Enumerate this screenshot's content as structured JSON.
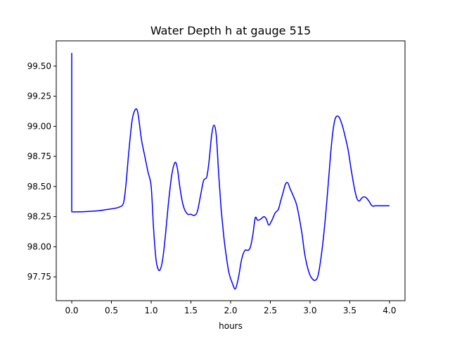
{
  "chart_data": {
    "type": "line",
    "title": "Water Depth h at gauge 515",
    "xlabel": "hours",
    "ylabel": "",
    "xlim": [
      -0.195,
      4.195
    ],
    "ylim": [
      97.552,
      99.71
    ],
    "xticks": [
      0.0,
      0.5,
      1.0,
      1.5,
      2.0,
      2.5,
      3.0,
      3.5,
      4.0
    ],
    "xtick_labels": [
      "0.0",
      "0.5",
      "1.0",
      "1.5",
      "2.0",
      "2.5",
      "3.0",
      "3.5",
      "4.0"
    ],
    "yticks": [
      97.75,
      98.0,
      98.25,
      98.5,
      98.75,
      99.0,
      99.25,
      99.5
    ],
    "ytick_labels": [
      "97.75",
      "98.00",
      "98.25",
      "98.50",
      "98.75",
      "99.00",
      "99.25",
      "99.50"
    ],
    "grid": false,
    "series": [
      {
        "color": "#0000ff",
        "x": [
          0.0,
          0.0,
          0.003,
          0.1,
          0.25,
          0.35,
          0.45,
          0.55,
          0.6,
          0.65,
          0.68,
          0.72,
          0.76,
          0.8,
          0.83,
          0.86,
          0.88,
          0.92,
          0.96,
          1.0,
          1.03,
          1.06,
          1.09,
          1.12,
          1.15,
          1.18,
          1.22,
          1.26,
          1.3,
          1.33,
          1.36,
          1.39,
          1.42,
          1.46,
          1.5,
          1.54,
          1.58,
          1.62,
          1.66,
          1.7,
          1.73,
          1.76,
          1.79,
          1.82,
          1.85,
          1.88,
          1.9,
          1.92,
          1.95,
          1.98,
          2.02,
          2.06,
          2.1,
          2.14,
          2.18,
          2.22,
          2.25,
          2.28,
          2.31,
          2.34,
          2.38,
          2.42,
          2.45,
          2.48,
          2.52,
          2.56,
          2.6,
          2.63,
          2.66,
          2.69,
          2.72,
          2.75,
          2.79,
          2.83,
          2.87,
          2.9,
          2.93,
          2.96,
          2.99,
          3.02,
          3.06,
          3.1,
          3.14,
          3.18,
          3.22,
          3.26,
          3.29,
          3.32,
          3.36,
          3.4,
          3.44,
          3.48,
          3.52,
          3.56,
          3.59,
          3.62,
          3.66,
          3.7,
          3.74,
          3.78,
          3.82,
          3.86,
          3.9,
          3.93,
          3.96,
          4.0
        ],
        "y": [
          99.61,
          98.29,
          98.29,
          98.29,
          98.295,
          98.3,
          98.31,
          98.32,
          98.33,
          98.36,
          98.5,
          98.8,
          99.05,
          99.14,
          99.12,
          98.98,
          98.88,
          98.75,
          98.62,
          98.5,
          98.15,
          97.9,
          97.81,
          97.82,
          97.92,
          98.1,
          98.38,
          98.6,
          98.7,
          98.65,
          98.5,
          98.38,
          98.31,
          98.27,
          98.27,
          98.26,
          98.29,
          98.42,
          98.55,
          98.58,
          98.72,
          98.92,
          99.01,
          98.92,
          98.6,
          98.32,
          98.18,
          98.05,
          97.9,
          97.78,
          97.7,
          97.65,
          97.75,
          97.9,
          97.97,
          97.97,
          98.0,
          98.1,
          98.24,
          98.22,
          98.23,
          98.25,
          98.23,
          98.18,
          98.22,
          98.28,
          98.31,
          98.38,
          98.45,
          98.52,
          98.53,
          98.48,
          98.42,
          98.35,
          98.22,
          98.1,
          97.95,
          97.85,
          97.78,
          97.74,
          97.72,
          97.76,
          97.92,
          98.15,
          98.45,
          98.78,
          98.97,
          99.07,
          99.08,
          99.02,
          98.92,
          98.8,
          98.63,
          98.48,
          98.4,
          98.38,
          98.41,
          98.41,
          98.38,
          98.34,
          98.34,
          98.34,
          98.34,
          98.34,
          98.34,
          98.34
        ]
      }
    ]
  }
}
